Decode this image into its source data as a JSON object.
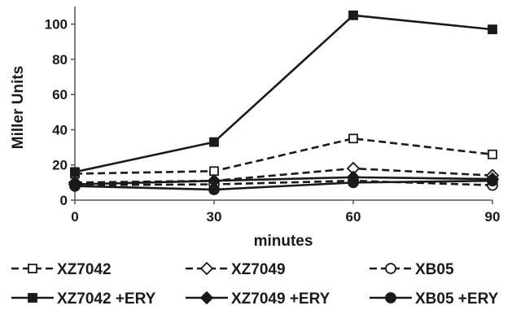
{
  "chart_data": {
    "type": "line",
    "x": [
      0,
      30,
      60,
      90
    ],
    "xlabel": "minutes",
    "ylabel": "Miller Units",
    "xlim": [
      0,
      90
    ],
    "ylim": [
      0,
      110
    ],
    "x_ticks": [
      "0",
      "30",
      "60",
      "90"
    ],
    "y_ticks": [
      "0",
      "20",
      "40",
      "60",
      "80",
      "100"
    ],
    "grid": false,
    "legend_position": "bottom",
    "series": [
      {
        "name": "XZ7042",
        "values": [
          15,
          16.5,
          35,
          26
        ],
        "marker": "square",
        "filled": false,
        "dashed": true
      },
      {
        "name": "XZ7049",
        "values": [
          10,
          11,
          18,
          14
        ],
        "marker": "diamond",
        "filled": false,
        "dashed": true
      },
      {
        "name": "XB05",
        "values": [
          8.5,
          9,
          11,
          8.5
        ],
        "marker": "circle",
        "filled": false,
        "dashed": true
      },
      {
        "name": "XZ7042 +ERY",
        "values": [
          16,
          33,
          105,
          97
        ],
        "marker": "square",
        "filled": true,
        "dashed": false
      },
      {
        "name": "XZ7049 +ERY",
        "values": [
          9,
          11,
          13,
          12
        ],
        "marker": "diamond",
        "filled": true,
        "dashed": false
      },
      {
        "name": "XB05 +ERY",
        "values": [
          8,
          6,
          10,
          11
        ],
        "marker": "circle",
        "filled": true,
        "dashed": false
      }
    ],
    "colors": {
      "line": "#1a1a1a",
      "marker_fill": "#1a1a1a",
      "background": "#ffffff"
    }
  }
}
